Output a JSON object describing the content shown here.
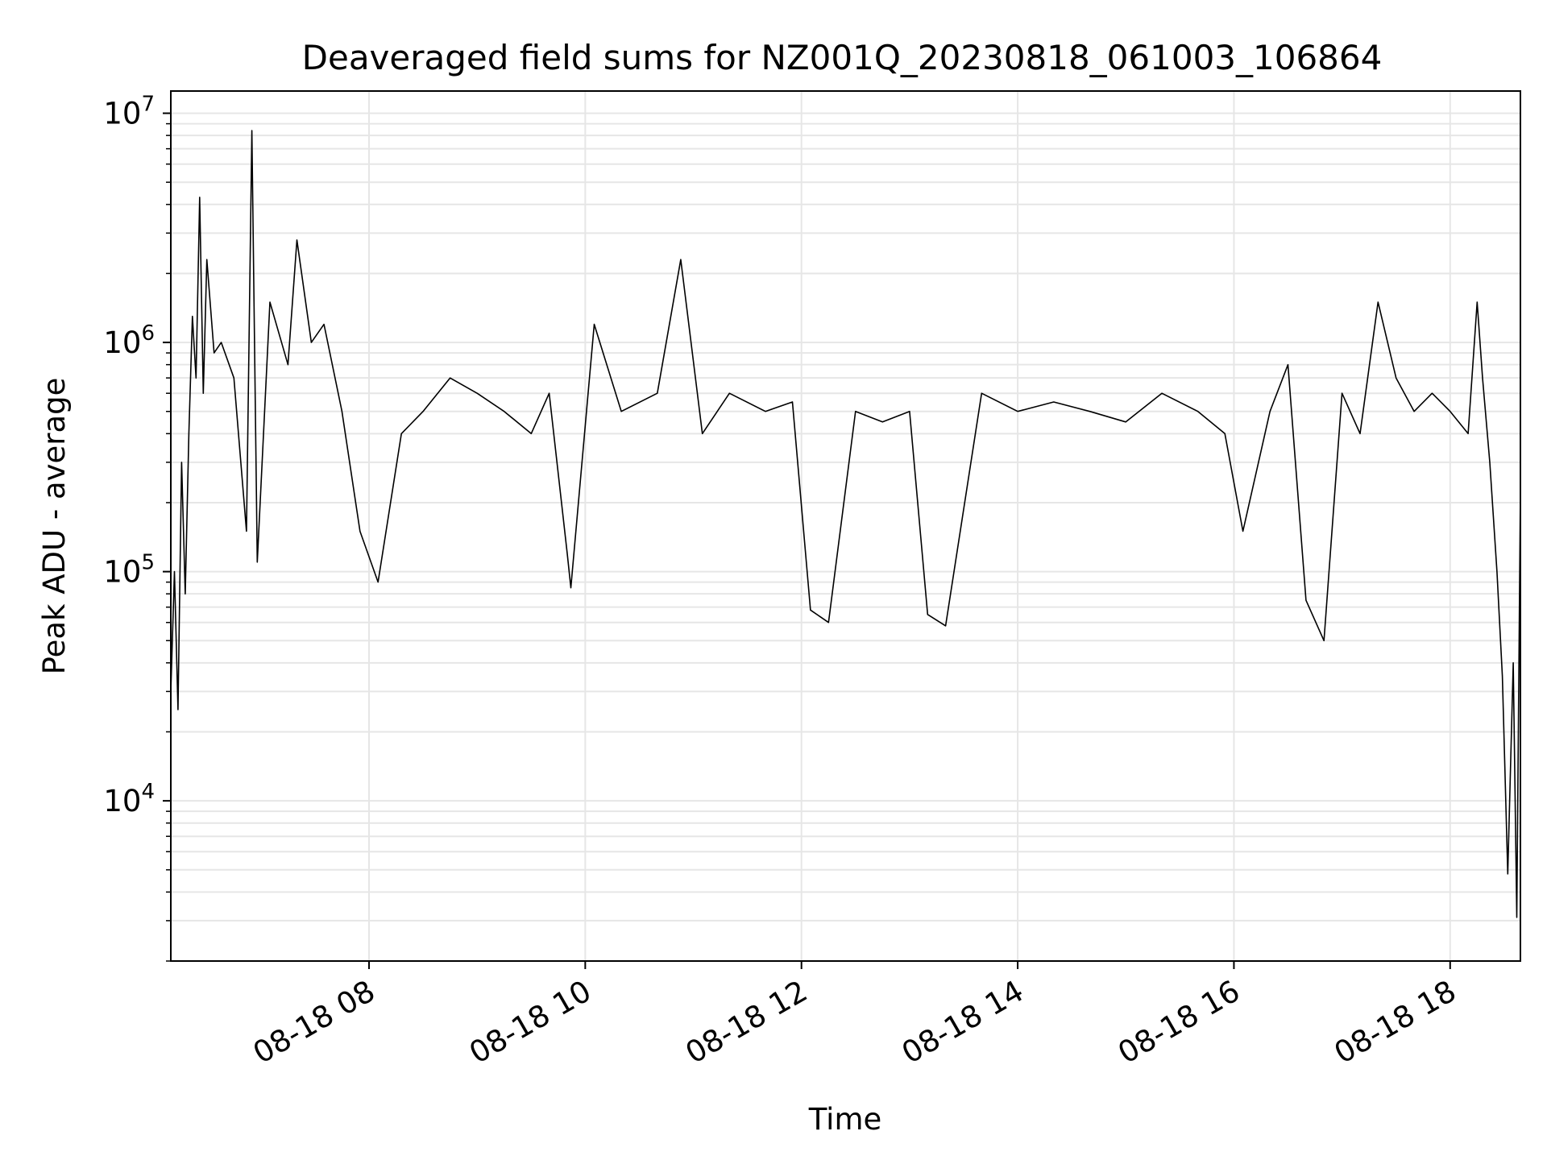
{
  "chart_data": {
    "type": "line",
    "title": "Deaveraged field sums for NZ001Q_20230818_061003_106864",
    "xlabel": "Time",
    "ylabel": "Peak ADU - average",
    "yscale": "log",
    "grid": true,
    "legend": "none",
    "line_color": "#000000",
    "grid_color": "#e6e6e6",
    "xlim": [
      "2023-08-18 06:10",
      "2023-08-18 18:39"
    ],
    "ylim": [
      2000,
      12500000
    ],
    "x_ticks": [
      "2023-08-18 08:00",
      "2023-08-18 10:00",
      "2023-08-18 12:00",
      "2023-08-18 14:00",
      "2023-08-18 16:00",
      "2023-08-18 18:00"
    ],
    "x_tick_labels": [
      "08-18 08",
      "08-18 10",
      "08-18 12",
      "08-18 14",
      "08-18 16",
      "08-18 18"
    ],
    "y_ticks": [
      10000,
      100000,
      1000000,
      10000000
    ],
    "y_tick_labels": [
      {
        "base": "10",
        "exp": "4"
      },
      {
        "base": "10",
        "exp": "5"
      },
      {
        "base": "10",
        "exp": "6"
      },
      {
        "base": "10",
        "exp": "7"
      }
    ],
    "series": [
      {
        "x": [
          "2023-08-18 06:10",
          "2023-08-18 06:12",
          "2023-08-18 06:14",
          "2023-08-18 06:16",
          "2023-08-18 06:18",
          "2023-08-18 06:20",
          "2023-08-18 06:22",
          "2023-08-18 06:24",
          "2023-08-18 06:26",
          "2023-08-18 06:28",
          "2023-08-18 06:30",
          "2023-08-18 06:34",
          "2023-08-18 06:38",
          "2023-08-18 06:45",
          "2023-08-18 06:52",
          "2023-08-18 06:55",
          "2023-08-18 06:58",
          "2023-08-18 07:05",
          "2023-08-18 07:15",
          "2023-08-18 07:20",
          "2023-08-18 07:28",
          "2023-08-18 07:35",
          "2023-08-18 07:45",
          "2023-08-18 07:55",
          "2023-08-18 08:05",
          "2023-08-18 08:18",
          "2023-08-18 08:30",
          "2023-08-18 08:45",
          "2023-08-18 09:00",
          "2023-08-18 09:15",
          "2023-08-18 09:30",
          "2023-08-18 09:40",
          "2023-08-18 09:50",
          "2023-08-18 09:52",
          "2023-08-18 10:05",
          "2023-08-18 10:20",
          "2023-08-18 10:40",
          "2023-08-18 10:53",
          "2023-08-18 11:05",
          "2023-08-18 11:20",
          "2023-08-18 11:40",
          "2023-08-18 11:55",
          "2023-08-18 12:05",
          "2023-08-18 12:15",
          "2023-08-18 12:30",
          "2023-08-18 12:45",
          "2023-08-18 13:00",
          "2023-08-18 13:10",
          "2023-08-18 13:20",
          "2023-08-18 13:40",
          "2023-08-18 14:00",
          "2023-08-18 14:20",
          "2023-08-18 14:40",
          "2023-08-18 15:00",
          "2023-08-18 15:20",
          "2023-08-18 15:40",
          "2023-08-18 15:55",
          "2023-08-18 16:05",
          "2023-08-18 16:20",
          "2023-08-18 16:30",
          "2023-08-18 16:40",
          "2023-08-18 16:50",
          "2023-08-18 17:00",
          "2023-08-18 17:10",
          "2023-08-18 17:20",
          "2023-08-18 17:30",
          "2023-08-18 17:40",
          "2023-08-18 17:50",
          "2023-08-18 18:00",
          "2023-08-18 18:10",
          "2023-08-18 18:15",
          "2023-08-18 18:18",
          "2023-08-18 18:22",
          "2023-08-18 18:26",
          "2023-08-18 18:29",
          "2023-08-18 18:32",
          "2023-08-18 18:35",
          "2023-08-18 18:37",
          "2023-08-18 18:39"
        ],
        "y": [
          30000,
          100000,
          25000,
          300000,
          80000,
          400000,
          1300000,
          700000,
          4300000,
          600000,
          2300000,
          900000,
          1000000,
          700000,
          150000,
          8400000,
          110000,
          1500000,
          800000,
          2800000,
          1000000,
          1200000,
          500000,
          150000,
          90000,
          400000,
          500000,
          700000,
          600000,
          500000,
          400000,
          600000,
          120000,
          85000,
          1200000,
          500000,
          600000,
          2300000,
          400000,
          600000,
          500000,
          550000,
          68000,
          60000,
          500000,
          450000,
          500000,
          65000,
          58000,
          600000,
          500000,
          550000,
          500000,
          450000,
          600000,
          500000,
          400000,
          150000,
          500000,
          800000,
          75000,
          50000,
          600000,
          400000,
          1500000,
          700000,
          500000,
          600000,
          500000,
          400000,
          1500000,
          700000,
          300000,
          100000,
          35000,
          4800,
          40000,
          3100,
          230000
        ]
      }
    ]
  }
}
